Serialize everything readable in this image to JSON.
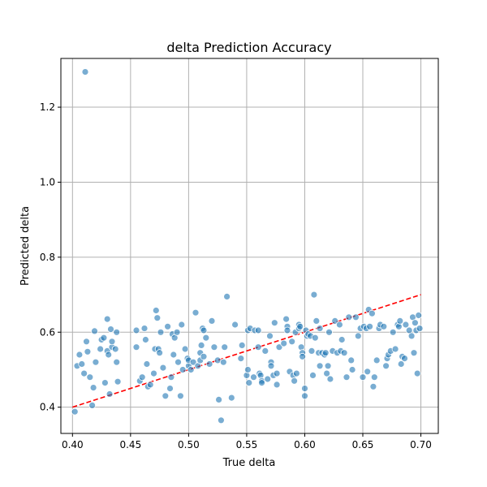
{
  "chart_data": {
    "type": "scatter",
    "title": "delta Prediction Accuracy",
    "xlabel": "True delta",
    "ylabel": "Predicted delta",
    "xlim": [
      0.39,
      0.715
    ],
    "ylim": [
      0.33,
      1.33
    ],
    "xticks": [
      "0.40",
      "0.45",
      "0.50",
      "0.55",
      "0.60",
      "0.65",
      "0.70"
    ],
    "yticks": [
      "0.4",
      "0.6",
      "0.8",
      "1.0",
      "1.2"
    ],
    "grid": true,
    "point_color": "#1f77b4",
    "reference_line": {
      "x": [
        0.4,
        0.7
      ],
      "y": [
        0.4,
        0.7
      ],
      "color": "#ff0000",
      "style": "dashed"
    },
    "points": [
      [
        0.411,
        1.294
      ],
      [
        0.402,
        0.388
      ],
      [
        0.404,
        0.51
      ],
      [
        0.406,
        0.54
      ],
      [
        0.408,
        0.515
      ],
      [
        0.41,
        0.49
      ],
      [
        0.412,
        0.575
      ],
      [
        0.413,
        0.548
      ],
      [
        0.415,
        0.48
      ],
      [
        0.417,
        0.405
      ],
      [
        0.418,
        0.452
      ],
      [
        0.42,
        0.52
      ],
      [
        0.419,
        0.603
      ],
      [
        0.424,
        0.555
      ],
      [
        0.425,
        0.58
      ],
      [
        0.427,
        0.585
      ],
      [
        0.428,
        0.465
      ],
      [
        0.43,
        0.55
      ],
      [
        0.431,
        0.54
      ],
      [
        0.43,
        0.635
      ],
      [
        0.432,
        0.435
      ],
      [
        0.433,
        0.608
      ],
      [
        0.434,
        0.56
      ],
      [
        0.434,
        0.575
      ],
      [
        0.437,
        0.555
      ],
      [
        0.438,
        0.6
      ],
      [
        0.438,
        0.52
      ],
      [
        0.439,
        0.468
      ],
      [
        0.455,
        0.605
      ],
      [
        0.455,
        0.56
      ],
      [
        0.458,
        0.47
      ],
      [
        0.46,
        0.48
      ],
      [
        0.462,
        0.61
      ],
      [
        0.463,
        0.58
      ],
      [
        0.464,
        0.515
      ],
      [
        0.465,
        0.455
      ],
      [
        0.467,
        0.46
      ],
      [
        0.47,
        0.49
      ],
      [
        0.471,
        0.555
      ],
      [
        0.472,
        0.658
      ],
      [
        0.473,
        0.638
      ],
      [
        0.474,
        0.555
      ],
      [
        0.475,
        0.545
      ],
      [
        0.476,
        0.6
      ],
      [
        0.478,
        0.505
      ],
      [
        0.48,
        0.43
      ],
      [
        0.482,
        0.615
      ],
      [
        0.484,
        0.45
      ],
      [
        0.485,
        0.48
      ],
      [
        0.486,
        0.595
      ],
      [
        0.487,
        0.54
      ],
      [
        0.488,
        0.585
      ],
      [
        0.49,
        0.6
      ],
      [
        0.491,
        0.52
      ],
      [
        0.493,
        0.43
      ],
      [
        0.494,
        0.62
      ],
      [
        0.495,
        0.5
      ],
      [
        0.497,
        0.555
      ],
      [
        0.499,
        0.53
      ],
      [
        0.5,
        0.51
      ],
      [
        0.5,
        0.525
      ],
      [
        0.502,
        0.5
      ],
      [
        0.504,
        0.52
      ],
      [
        0.506,
        0.652
      ],
      [
        0.508,
        0.51
      ],
      [
        0.51,
        0.525
      ],
      [
        0.51,
        0.545
      ],
      [
        0.511,
        0.565
      ],
      [
        0.512,
        0.61
      ],
      [
        0.513,
        0.605
      ],
      [
        0.513,
        0.535
      ],
      [
        0.515,
        0.585
      ],
      [
        0.518,
        0.515
      ],
      [
        0.52,
        0.63
      ],
      [
        0.522,
        0.56
      ],
      [
        0.525,
        0.525
      ],
      [
        0.526,
        0.42
      ],
      [
        0.528,
        0.365
      ],
      [
        0.53,
        0.52
      ],
      [
        0.531,
        0.56
      ],
      [
        0.533,
        0.695
      ],
      [
        0.537,
        0.425
      ],
      [
        0.54,
        0.62
      ],
      [
        0.545,
        0.53
      ],
      [
        0.546,
        0.565
      ],
      [
        0.55,
        0.485
      ],
      [
        0.551,
        0.5
      ],
      [
        0.551,
        0.605
      ],
      [
        0.552,
        0.465
      ],
      [
        0.553,
        0.61
      ],
      [
        0.556,
        0.48
      ],
      [
        0.557,
        0.605
      ],
      [
        0.56,
        0.56
      ],
      [
        0.56,
        0.605
      ],
      [
        0.561,
        0.49
      ],
      [
        0.562,
        0.485
      ],
      [
        0.563,
        0.47
      ],
      [
        0.563,
        0.465
      ],
      [
        0.566,
        0.55
      ],
      [
        0.568,
        0.475
      ],
      [
        0.57,
        0.59
      ],
      [
        0.571,
        0.52
      ],
      [
        0.571,
        0.51
      ],
      [
        0.573,
        0.485
      ],
      [
        0.574,
        0.625
      ],
      [
        0.576,
        0.49
      ],
      [
        0.576,
        0.46
      ],
      [
        0.578,
        0.56
      ],
      [
        0.582,
        0.57
      ],
      [
        0.584,
        0.635
      ],
      [
        0.585,
        0.615
      ],
      [
        0.585,
        0.605
      ],
      [
        0.587,
        0.495
      ],
      [
        0.589,
        0.575
      ],
      [
        0.59,
        0.485
      ],
      [
        0.591,
        0.47
      ],
      [
        0.592,
        0.6
      ],
      [
        0.593,
        0.49
      ],
      [
        0.595,
        0.62
      ],
      [
        0.595,
        0.61
      ],
      [
        0.596,
        0.615
      ],
      [
        0.597,
        0.56
      ],
      [
        0.598,
        0.545
      ],
      [
        0.598,
        0.535
      ],
      [
        0.6,
        0.45
      ],
      [
        0.6,
        0.43
      ],
      [
        0.601,
        0.605
      ],
      [
        0.602,
        0.59
      ],
      [
        0.603,
        0.595
      ],
      [
        0.605,
        0.59
      ],
      [
        0.606,
        0.55
      ],
      [
        0.607,
        0.485
      ],
      [
        0.608,
        0.7
      ],
      [
        0.609,
        0.585
      ],
      [
        0.61,
        0.63
      ],
      [
        0.612,
        0.545
      ],
      [
        0.613,
        0.51
      ],
      [
        0.613,
        0.61
      ],
      [
        0.615,
        0.545
      ],
      [
        0.617,
        0.54
      ],
      [
        0.618,
        0.545
      ],
      [
        0.619,
        0.49
      ],
      [
        0.62,
        0.51
      ],
      [
        0.621,
        0.6
      ],
      [
        0.622,
        0.475
      ],
      [
        0.624,
        0.55
      ],
      [
        0.626,
        0.63
      ],
      [
        0.628,
        0.545
      ],
      [
        0.63,
        0.62
      ],
      [
        0.631,
        0.55
      ],
      [
        0.632,
        0.58
      ],
      [
        0.634,
        0.545
      ],
      [
        0.636,
        0.48
      ],
      [
        0.638,
        0.64
      ],
      [
        0.64,
        0.525
      ],
      [
        0.641,
        0.5
      ],
      [
        0.644,
        0.64
      ],
      [
        0.646,
        0.59
      ],
      [
        0.648,
        0.61
      ],
      [
        0.65,
        0.48
      ],
      [
        0.651,
        0.615
      ],
      [
        0.653,
        0.61
      ],
      [
        0.654,
        0.495
      ],
      [
        0.655,
        0.66
      ],
      [
        0.656,
        0.615
      ],
      [
        0.658,
        0.65
      ],
      [
        0.659,
        0.455
      ],
      [
        0.66,
        0.48
      ],
      [
        0.662,
        0.525
      ],
      [
        0.664,
        0.61
      ],
      [
        0.665,
        0.62
      ],
      [
        0.668,
        0.615
      ],
      [
        0.67,
        0.51
      ],
      [
        0.671,
        0.53
      ],
      [
        0.672,
        0.54
      ],
      [
        0.674,
        0.55
      ],
      [
        0.676,
        0.6
      ],
      [
        0.678,
        0.555
      ],
      [
        0.68,
        0.62
      ],
      [
        0.681,
        0.615
      ],
      [
        0.682,
        0.63
      ],
      [
        0.683,
        0.515
      ],
      [
        0.684,
        0.535
      ],
      [
        0.686,
        0.53
      ],
      [
        0.687,
        0.62
      ],
      [
        0.69,
        0.605
      ],
      [
        0.692,
        0.59
      ],
      [
        0.693,
        0.64
      ],
      [
        0.694,
        0.545
      ],
      [
        0.695,
        0.625
      ],
      [
        0.696,
        0.605
      ],
      [
        0.697,
        0.49
      ],
      [
        0.698,
        0.645
      ],
      [
        0.699,
        0.61
      ]
    ]
  }
}
